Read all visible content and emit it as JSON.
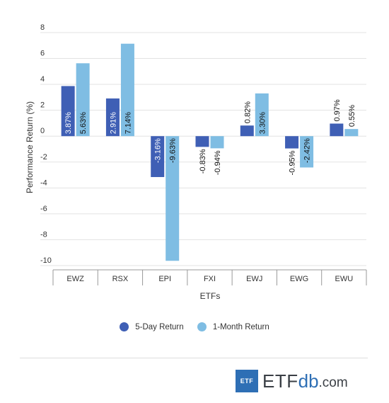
{
  "chart_data": {
    "type": "bar",
    "categories": [
      "EWZ",
      "RSX",
      "EPI",
      "FXI",
      "EWJ",
      "EWG",
      "EWU"
    ],
    "series": [
      {
        "name": "5-Day Return",
        "color": "#3f5fb5",
        "values": [
          3.87,
          2.91,
          -3.16,
          -0.83,
          0.82,
          -0.95,
          0.97
        ],
        "labels": [
          "3.87%",
          "2.91%",
          "-3.16%",
          "-0.83%",
          "0.82%",
          "-0.95%",
          "0.97%"
        ]
      },
      {
        "name": "1-Month Return",
        "color": "#7fbde3",
        "values": [
          5.63,
          7.14,
          -9.63,
          -0.94,
          3.3,
          -2.42,
          0.55
        ],
        "labels": [
          "5.63%",
          "7.14%",
          "-9.63%",
          "-0.94%",
          "3.30%",
          "-2.42%",
          "0.55%"
        ]
      }
    ],
    "ylabel": "Performance Return (%)",
    "xlabel": "ETFs",
    "ylim": [
      -10,
      8
    ],
    "yticks": [
      "8",
      "6",
      "4",
      "2",
      "0",
      "-2",
      "-4",
      "-6",
      "-8",
      "-10"
    ],
    "grid": true,
    "legend_position": "bottom-center"
  },
  "logo": {
    "box_text": "ETF",
    "brand_main": "ETF",
    "brand_accent": "db",
    "brand_suffix": ".com"
  }
}
